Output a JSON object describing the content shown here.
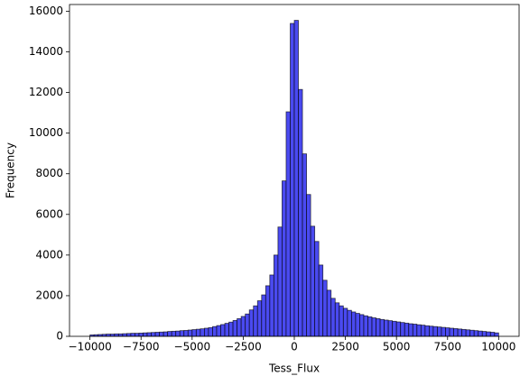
{
  "chart_data": {
    "type": "histogram",
    "x_label": "Tess_Flux",
    "y_label": "Frequency",
    "color": "#4040f0",
    "edgecolor": "#000000",
    "bins": [
      -10000,
      -9800,
      -9600,
      -9400,
      -9200,
      -9000,
      -8800,
      -8600,
      -8400,
      -8200,
      -8000,
      -7800,
      -7600,
      -7400,
      -7200,
      -7000,
      -6800,
      -6600,
      -6400,
      -6200,
      -6000,
      -5800,
      -5600,
      -5400,
      -5200,
      -5000,
      -4800,
      -4600,
      -4400,
      -4200,
      -4000,
      -3800,
      -3600,
      -3400,
      -3200,
      -3000,
      -2800,
      -2600,
      -2400,
      -2200,
      -2000,
      -1800,
      -1600,
      -1400,
      -1200,
      -1000,
      -800,
      -600,
      -400,
      -200,
      0,
      200,
      400,
      600,
      800,
      1000,
      1200,
      1400,
      1600,
      1800,
      2000,
      2200,
      2400,
      2600,
      2800,
      3000,
      3200,
      3400,
      3600,
      3800,
      4000,
      4200,
      4400,
      4600,
      4800,
      5000,
      5200,
      5400,
      5600,
      5800,
      6000,
      6200,
      6400,
      6600,
      6800,
      7000,
      7200,
      7400,
      7600,
      7800,
      8000,
      8200,
      8400,
      8600,
      8800,
      9000,
      9200,
      9400,
      9600,
      9800,
      10000
    ],
    "counts": [
      70,
      80,
      90,
      100,
      110,
      110,
      120,
      120,
      130,
      140,
      150,
      150,
      160,
      170,
      180,
      190,
      200,
      210,
      220,
      240,
      250,
      260,
      280,
      290,
      310,
      330,
      350,
      370,
      400,
      430,
      480,
      530,
      580,
      640,
      700,
      780,
      870,
      980,
      1100,
      1300,
      1500,
      1750,
      2040,
      2490,
      3020,
      4000,
      5380,
      7650,
      11050,
      15400,
      15550,
      12150,
      8980,
      6980,
      5420,
      4670,
      3510,
      2760,
      2270,
      1870,
      1650,
      1500,
      1380,
      1280,
      1200,
      1130,
      1070,
      1010,
      960,
      910,
      870,
      830,
      800,
      770,
      740,
      710,
      680,
      650,
      620,
      600,
      570,
      550,
      520,
      500,
      480,
      460,
      440,
      420,
      400,
      380,
      360,
      340,
      320,
      300,
      280,
      260,
      240,
      220,
      200,
      170
    ],
    "xlim": [
      -11000,
      11000
    ],
    "ylim": [
      0,
      16330
    ],
    "xticks": [
      {
        "value": -10000,
        "label": "−10000"
      },
      {
        "value": -7500,
        "label": "−7500"
      },
      {
        "value": -5000,
        "label": "−5000"
      },
      {
        "value": -2500,
        "label": "−2500"
      },
      0,
      2500,
      5000,
      7500,
      10000
    ],
    "yticks": [
      0,
      2000,
      4000,
      6000,
      8000,
      10000,
      12000,
      14000,
      16000
    ]
  }
}
